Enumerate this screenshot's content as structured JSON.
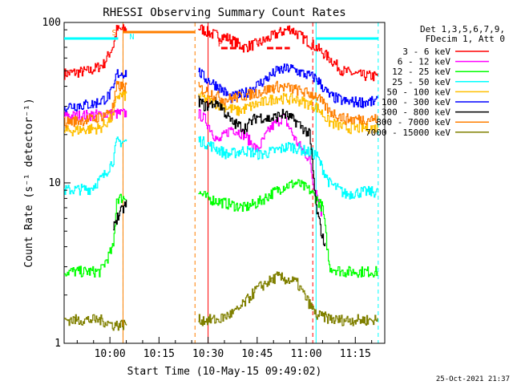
{
  "chart_data": {
    "type": "line",
    "title": "RHESSI Observing Summary Count Rates",
    "xlabel": "Start Time (10-May-15 09:49:02)",
    "ylabel": "Count Rate (s⁻¹ detector⁻¹)",
    "yscale": "log",
    "ylim": [
      1,
      100
    ],
    "xlim_minutes": [
      -3,
      95
    ],
    "x_ticks": [
      {
        "minute": 11,
        "label": "10:00"
      },
      {
        "minute": 26,
        "label": "10:15"
      },
      {
        "minute": 41,
        "label": "10:30"
      },
      {
        "minute": 56,
        "label": "10:45"
      },
      {
        "minute": 71,
        "label": "11:00"
      },
      {
        "minute": 86,
        "label": "11:15"
      }
    ],
    "y_ticks": [
      {
        "value": 1,
        "label": "1"
      },
      {
        "value": 10,
        "label": "10"
      },
      {
        "value": 100,
        "label": "100"
      }
    ],
    "grid": false,
    "legend": {
      "placement": "right",
      "header": [
        "Det 1,3,5,6,7,9,",
        "FDecim 1, Att 0"
      ]
    },
    "annotations": {
      "footer": "25-Oct-2021 21:37",
      "markers": [
        {
          "label": "S",
          "color": "#ff7f00"
        },
        {
          "label": "N",
          "color": "#00ffff"
        },
        {
          "label": "F",
          "color": "#ff0000"
        }
      ]
    },
    "data_gap_minutes": [
      16,
      38
    ],
    "night_minutes": [
      [
        -3,
        15
      ],
      [
        74,
        93
      ]
    ],
    "saa_minutes": [
      15,
      37
    ],
    "flare_minutes": [
      41,
      73
    ],
    "series": [
      {
        "name": "3 - 6 keV",
        "color": "#ff0000",
        "points": [
          [
            -3,
            48
          ],
          [
            5,
            50
          ],
          [
            9,
            55
          ],
          [
            12,
            72
          ],
          [
            13,
            90
          ],
          [
            37,
            95
          ],
          [
            42,
            85
          ],
          [
            47,
            80
          ],
          [
            52,
            70
          ],
          [
            57,
            75
          ],
          [
            62,
            85
          ],
          [
            66,
            92
          ],
          [
            70,
            80
          ],
          [
            74,
            70
          ],
          [
            78,
            60
          ],
          [
            82,
            50
          ],
          [
            87,
            47
          ],
          [
            93,
            46
          ]
        ]
      },
      {
        "name": "6 - 12 keV",
        "color": "#ff00ff",
        "points": [
          [
            -3,
            26
          ],
          [
            13,
            27
          ],
          [
            37,
            28
          ],
          [
            40,
            25
          ],
          [
            44,
            18
          ],
          [
            48,
            22
          ],
          [
            52,
            20
          ],
          [
            56,
            16
          ],
          [
            60,
            22
          ],
          [
            64,
            26
          ],
          [
            68,
            18
          ],
          [
            72,
            14
          ],
          [
            73,
            10
          ],
          [
            74,
            9
          ],
          [
            76,
            6
          ]
        ]
      },
      {
        "name": "12 - 25 keV",
        "color": "#00ff00",
        "points": [
          [
            -3,
            2.8
          ],
          [
            8,
            2.8
          ],
          [
            12,
            4
          ],
          [
            13,
            8
          ],
          [
            37,
            9
          ],
          [
            41,
            8
          ],
          [
            46,
            7.5
          ],
          [
            52,
            7
          ],
          [
            56,
            7.5
          ],
          [
            60,
            8.5
          ],
          [
            64,
            9.5
          ],
          [
            68,
            10
          ],
          [
            72,
            9
          ],
          [
            74,
            8
          ],
          [
            76,
            7
          ],
          [
            78,
            3
          ],
          [
            82,
            2.8
          ],
          [
            93,
            2.8
          ]
        ]
      },
      {
        "name": "25 - 50 keV",
        "color": "#00ffff",
        "points": [
          [
            -3,
            9
          ],
          [
            5,
            9.2
          ],
          [
            9,
            11
          ],
          [
            12,
            14
          ],
          [
            13,
            18
          ],
          [
            37,
            19
          ],
          [
            42,
            17
          ],
          [
            47,
            15
          ],
          [
            52,
            16
          ],
          [
            57,
            15
          ],
          [
            62,
            16
          ],
          [
            66,
            17
          ],
          [
            70,
            16
          ],
          [
            74,
            15
          ],
          [
            78,
            10
          ],
          [
            83,
            8.5
          ],
          [
            88,
            8.8
          ],
          [
            93,
            8.8
          ]
        ]
      },
      {
        "name": "50 - 100 keV",
        "color": "#ffbf00",
        "points": [
          [
            -3,
            21
          ],
          [
            8,
            22
          ],
          [
            12,
            26
          ],
          [
            13,
            35
          ],
          [
            37,
            36
          ],
          [
            42,
            32
          ],
          [
            46,
            30
          ],
          [
            50,
            28
          ],
          [
            56,
            31
          ],
          [
            62,
            34
          ],
          [
            68,
            33
          ],
          [
            74,
            30
          ],
          [
            78,
            24
          ],
          [
            83,
            22
          ],
          [
            88,
            22
          ],
          [
            93,
            22
          ]
        ]
      },
      {
        "name": "100 - 300 keV",
        "color": "#0000ff",
        "points": [
          [
            -3,
            30
          ],
          [
            6,
            31
          ],
          [
            10,
            34
          ],
          [
            12,
            38
          ],
          [
            13,
            48
          ],
          [
            37,
            52
          ],
          [
            40,
            45
          ],
          [
            44,
            40
          ],
          [
            48,
            34
          ],
          [
            52,
            36
          ],
          [
            57,
            42
          ],
          [
            62,
            50
          ],
          [
            66,
            52
          ],
          [
            70,
            48
          ],
          [
            74,
            45
          ],
          [
            78,
            35
          ],
          [
            83,
            32
          ],
          [
            88,
            32
          ],
          [
            93,
            32
          ]
        ]
      },
      {
        "name": "300 - 800 keV",
        "color": "#000000",
        "points": [
          [
            12,
            5.5
          ],
          [
            13,
            6
          ],
          [
            37,
            34
          ],
          [
            40,
            30
          ],
          [
            44,
            32
          ],
          [
            48,
            24
          ],
          [
            52,
            22
          ],
          [
            56,
            26
          ],
          [
            60,
            25
          ],
          [
            64,
            27
          ],
          [
            68,
            24
          ],
          [
            72,
            20
          ],
          [
            74,
            7
          ],
          [
            76,
            4.5
          ],
          [
            77,
            4
          ]
        ]
      },
      {
        "name": "800 - 7000 keV",
        "color": "#ff7f00",
        "points": [
          [
            -3,
            24
          ],
          [
            6,
            25
          ],
          [
            10,
            27
          ],
          [
            12,
            30
          ],
          [
            13,
            40
          ],
          [
            37,
            40
          ],
          [
            41,
            37
          ],
          [
            46,
            33
          ],
          [
            52,
            35
          ],
          [
            57,
            37
          ],
          [
            62,
            40
          ],
          [
            66,
            39
          ],
          [
            70,
            37
          ],
          [
            74,
            35
          ],
          [
            78,
            28
          ],
          [
            83,
            25
          ],
          [
            88,
            25
          ],
          [
            93,
            25
          ]
        ]
      },
      {
        "name": "7000 - 15000 keV",
        "color": "#808000",
        "points": [
          [
            -3,
            1.4
          ],
          [
            8,
            1.4
          ],
          [
            12,
            1.3
          ],
          [
            37,
            1.4
          ],
          [
            44,
            1.4
          ],
          [
            50,
            1.6
          ],
          [
            56,
            2.2
          ],
          [
            62,
            2.6
          ],
          [
            68,
            2.4
          ],
          [
            74,
            1.5
          ],
          [
            80,
            1.4
          ],
          [
            88,
            1.4
          ],
          [
            93,
            1.4
          ]
        ]
      }
    ]
  }
}
